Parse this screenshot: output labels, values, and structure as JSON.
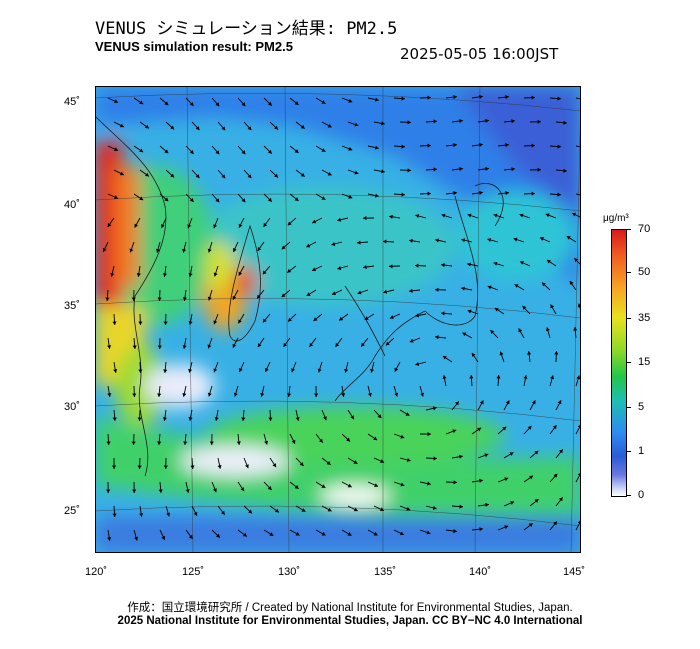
{
  "header": {
    "title_ja": "VENUS シミュレーション結果: PM2.5",
    "title_en": "VENUS simulation result: PM2.5",
    "timestamp": "2025-05-05 16:00JST"
  },
  "map": {
    "lat_labels": [
      "45˚",
      "40˚",
      "35˚",
      "30˚",
      "25˚"
    ],
    "lon_labels": [
      "120˚",
      "125˚",
      "130˚",
      "135˚",
      "140˚",
      "145˚"
    ],
    "colors": {
      "ocean_background": "#38b0e6",
      "low": "#ffffff",
      "mid": "#23c64a",
      "high": "#d81b1b",
      "wind_arrow": "#000000",
      "coastline": "#1a1a1a",
      "grid": "#333333"
    }
  },
  "colorbar": {
    "unit": "μg/m³",
    "ticks": [
      "70",
      "50",
      "35",
      "15",
      "5",
      "1",
      "0"
    ]
  },
  "footer": {
    "credit_line_1": "作成：国立環境研究所 / Created by National Institute for Environmental Studies, Japan.",
    "credit_line_2": "2025 National Institute for Environmental Studies, Japan. CC BY−NC 4.0 International"
  }
}
